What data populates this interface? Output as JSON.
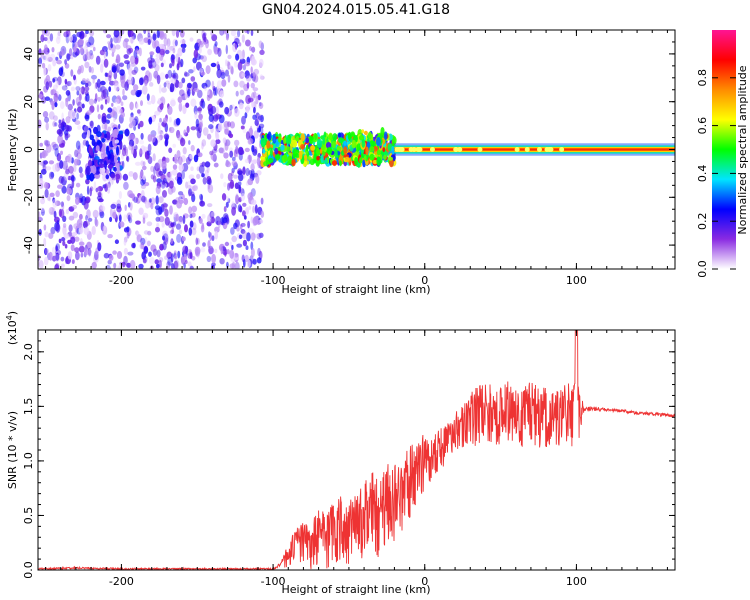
{
  "title": "GN04.2024.015.05.41.G18",
  "chart_data": [
    {
      "type": "heatmap",
      "xlabel": "Height of straight line (km)",
      "ylabel": "Frequency (Hz)",
      "xlim": [
        -255,
        165
      ],
      "ylim": [
        -50,
        50
      ],
      "xticks": [
        -200,
        -100,
        0,
        100
      ],
      "yticks": [
        -40,
        -20,
        0,
        20,
        40
      ],
      "colorbar": {
        "label": "Normalized spectral amplitude",
        "range": [
          0,
          1
        ],
        "ticks": [
          "0.0",
          "0.2",
          "0.4",
          "0.6",
          "0.8"
        ],
        "colormap": [
          "#ffffff",
          "#8a2be2",
          "#0000ff",
          "#00e5ff",
          "#00ff00",
          "#ffff00",
          "#ff8c00",
          "#ff0000",
          "#ff1493"
        ]
      },
      "regions": [
        {
          "name": "scattered noise",
          "x": [
            -255,
            -107
          ],
          "freq": [
            -50,
            50
          ],
          "amplitude": 0.12
        },
        {
          "name": "noise cluster",
          "x": [
            -222,
            -200
          ],
          "freq": [
            -12,
            8
          ],
          "amplitude": 0.15
        },
        {
          "name": "band",
          "x": [
            -107,
            -20
          ],
          "freq": [
            -6,
            6
          ],
          "amplitude": 0.45
        },
        {
          "name": "strong line",
          "x": [
            -20,
            165
          ],
          "freq": [
            -2,
            2
          ],
          "amplitude": 0.85
        }
      ]
    },
    {
      "type": "line",
      "xlabel": "Height of straight line (km)",
      "ylabel": "SNR (10 * v/v)",
      "y_multiplier": "(x10^4)",
      "xlim": [
        -255,
        165
      ],
      "ylim": [
        0,
        2.2
      ],
      "xticks": [
        -200,
        -100,
        0,
        100
      ],
      "yticks": [
        "0.0",
        "0.5",
        "1.0",
        "1.5",
        "2.0"
      ],
      "color": "#ee3333",
      "series": [
        {
          "x": [
            -255,
            -230,
            -200,
            -150,
            -110,
            -100,
            -95,
            -90,
            -85,
            -80,
            -75,
            -70,
            -65,
            -60,
            -55,
            -50,
            -45,
            -40,
            -35,
            -30,
            -25,
            -20,
            -15,
            -10,
            -5,
            0,
            5,
            10,
            15,
            20,
            25,
            30,
            35,
            40,
            45,
            50,
            55,
            60,
            65,
            70,
            75,
            80,
            85,
            90,
            95,
            100,
            105,
            110,
            120,
            130,
            140,
            150,
            160,
            165
          ],
          "y": [
            0.01,
            0.02,
            0.01,
            0.01,
            0.01,
            0.01,
            0.05,
            0.15,
            0.25,
            0.3,
            0.25,
            0.35,
            0.3,
            0.4,
            0.45,
            0.35,
            0.45,
            0.5,
            0.6,
            0.55,
            0.7,
            0.65,
            0.75,
            0.85,
            0.95,
            1.05,
            1.1,
            1.15,
            1.2,
            1.3,
            1.35,
            1.45,
            1.45,
            1.5,
            1.48,
            1.45,
            1.5,
            1.48,
            1.45,
            1.5,
            1.45,
            1.45,
            1.48,
            1.45,
            1.5,
            1.48,
            1.48,
            1.48,
            1.47,
            1.46,
            1.44,
            1.43,
            1.42,
            1.41
          ],
          "spread": [
            0,
            0,
            0,
            0,
            0,
            0,
            0.03,
            0.15,
            0.2,
            0.22,
            0.25,
            0.3,
            0.32,
            0.35,
            0.35,
            0.38,
            0.4,
            0.42,
            0.45,
            0.45,
            0.45,
            0.45,
            0.42,
            0.4,
            0.38,
            0.3,
            0.28,
            0.25,
            0.22,
            0.2,
            0.25,
            0.3,
            0.32,
            0.35,
            0.35,
            0.33,
            0.33,
            0.33,
            0.33,
            0.33,
            0.33,
            0.33,
            0.33,
            0.33,
            0.33,
            0.4,
            0.04,
            0.03,
            0.02,
            0.02,
            0.02,
            0.02,
            0.02,
            0.02
          ]
        }
      ]
    }
  ]
}
